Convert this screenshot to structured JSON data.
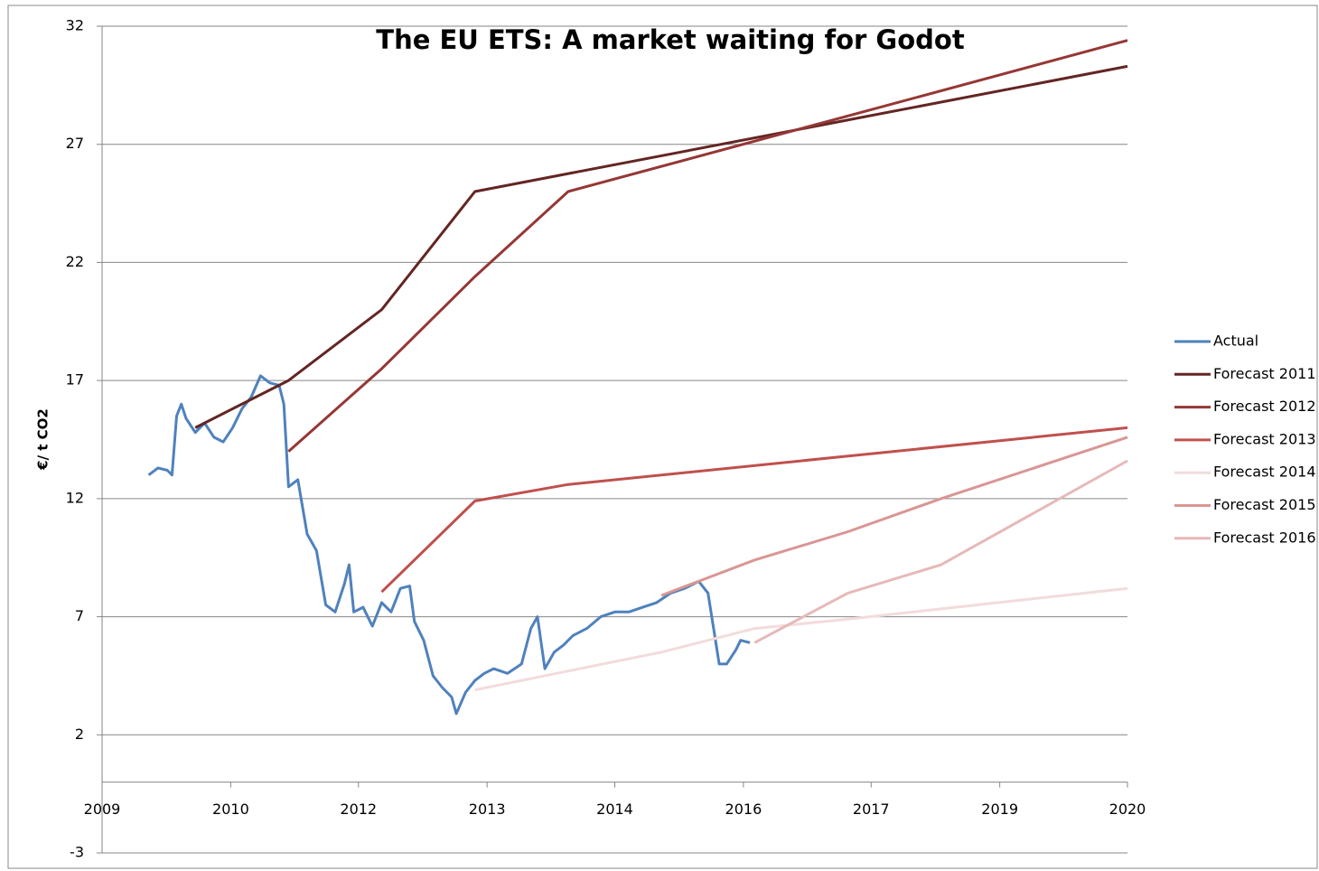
{
  "chart_data": {
    "type": "line",
    "title": "The EU ETS: A market waiting for Godot",
    "y_label": "€/ t CO2",
    "xlim": [
      2009,
      2020
    ],
    "ylim": [
      -3,
      32
    ],
    "yticks": [
      -3,
      2,
      7,
      12,
      17,
      22,
      27,
      32
    ],
    "xticks": [
      2009,
      {
        "value": 2010.38,
        "label": "2010"
      },
      {
        "value": 2011.75,
        "label": "2012"
      },
      {
        "value": 2013.13,
        "label": "2013"
      },
      {
        "value": 2014.5,
        "label": "2014"
      },
      {
        "value": 2015.88,
        "label": "2016"
      },
      {
        "value": 2017.25,
        "label": "2017"
      },
      {
        "value": 2018.63,
        "label": "2019"
      },
      2020
    ],
    "grid": true,
    "legend": "right",
    "series": [
      {
        "name": "Actual",
        "color": "#4f81bd",
        "x": [
          2009.5,
          2009.6,
          2009.7,
          2009.75,
          2009.8,
          2009.85,
          2009.9,
          2010.0,
          2010.1,
          2010.2,
          2010.3,
          2010.4,
          2010.5,
          2010.6,
          2010.7,
          2010.8,
          2010.9,
          2010.95,
          2011.0,
          2011.1,
          2011.2,
          2011.3,
          2011.4,
          2011.5,
          2011.6,
          2011.65,
          2011.7,
          2011.8,
          2011.9,
          2012.0,
          2012.1,
          2012.2,
          2012.3,
          2012.35,
          2012.45,
          2012.55,
          2012.65,
          2012.75,
          2012.8,
          2012.9,
          2013.0,
          2013.1,
          2013.2,
          2013.35,
          2013.5,
          2013.6,
          2013.67,
          2013.75,
          2013.85,
          2013.95,
          2014.05,
          2014.2,
          2014.35,
          2014.5,
          2014.65,
          2014.8,
          2014.95,
          2015.1,
          2015.25,
          2015.4,
          2015.5,
          2015.56,
          2015.62,
          2015.7,
          2015.8,
          2015.85,
          2015.95
        ],
        "values": [
          13,
          13.3,
          13.2,
          13.0,
          15.5,
          16.0,
          15.4,
          14.8,
          15.2,
          14.6,
          14.4,
          15.0,
          15.8,
          16.3,
          17.2,
          16.9,
          16.8,
          16.0,
          12.5,
          12.8,
          10.5,
          9.8,
          7.5,
          7.2,
          8.4,
          9.2,
          7.2,
          7.4,
          6.6,
          7.6,
          7.2,
          8.2,
          8.3,
          6.8,
          6.0,
          4.5,
          4.0,
          3.6,
          2.9,
          3.8,
          4.3,
          4.6,
          4.8,
          4.6,
          5.0,
          6.5,
          7.0,
          4.8,
          5.5,
          5.8,
          6.2,
          6.5,
          7.0,
          7.2,
          7.2,
          7.4,
          7.6,
          8.0,
          8.2,
          8.5,
          8.0,
          6.5,
          5.0,
          5.0,
          5.6,
          6.0,
          5.9
        ]
      },
      {
        "name": "Forecast 2011",
        "color": "#632523",
        "x": [
          2010,
          2011,
          2012,
          2013,
          2020
        ],
        "values": [
          15,
          17,
          20,
          25,
          30.3
        ]
      },
      {
        "name": "Forecast 2012",
        "color": "#953735",
        "x": [
          2011,
          2012,
          2013,
          2014,
          2020
        ],
        "values": [
          14,
          17.5,
          21.4,
          25,
          31.4
        ]
      },
      {
        "name": "Forecast 2013",
        "color": "#c0504d",
        "x": [
          2012,
          2013,
          2014,
          2020
        ],
        "values": [
          8.05,
          11.9,
          12.6,
          15
        ]
      },
      {
        "name": "Forecast 2014",
        "color": "#f2dcdb",
        "x": [
          2013,
          2015,
          2016,
          2017,
          2020
        ],
        "values": [
          3.9,
          5.5,
          6.5,
          6.9,
          8.2
        ]
      },
      {
        "name": "Forecast 2015",
        "color": "#d99694",
        "x": [
          2015,
          2016,
          2017,
          2018,
          2020
        ],
        "values": [
          7.9,
          9.4,
          10.6,
          12.0,
          14.6
        ]
      },
      {
        "name": "Forecast 2016",
        "color": "#e6b9b8",
        "x": [
          2016,
          2017,
          2018,
          2020
        ],
        "values": [
          5.9,
          8.0,
          9.2,
          13.6
        ]
      }
    ]
  }
}
